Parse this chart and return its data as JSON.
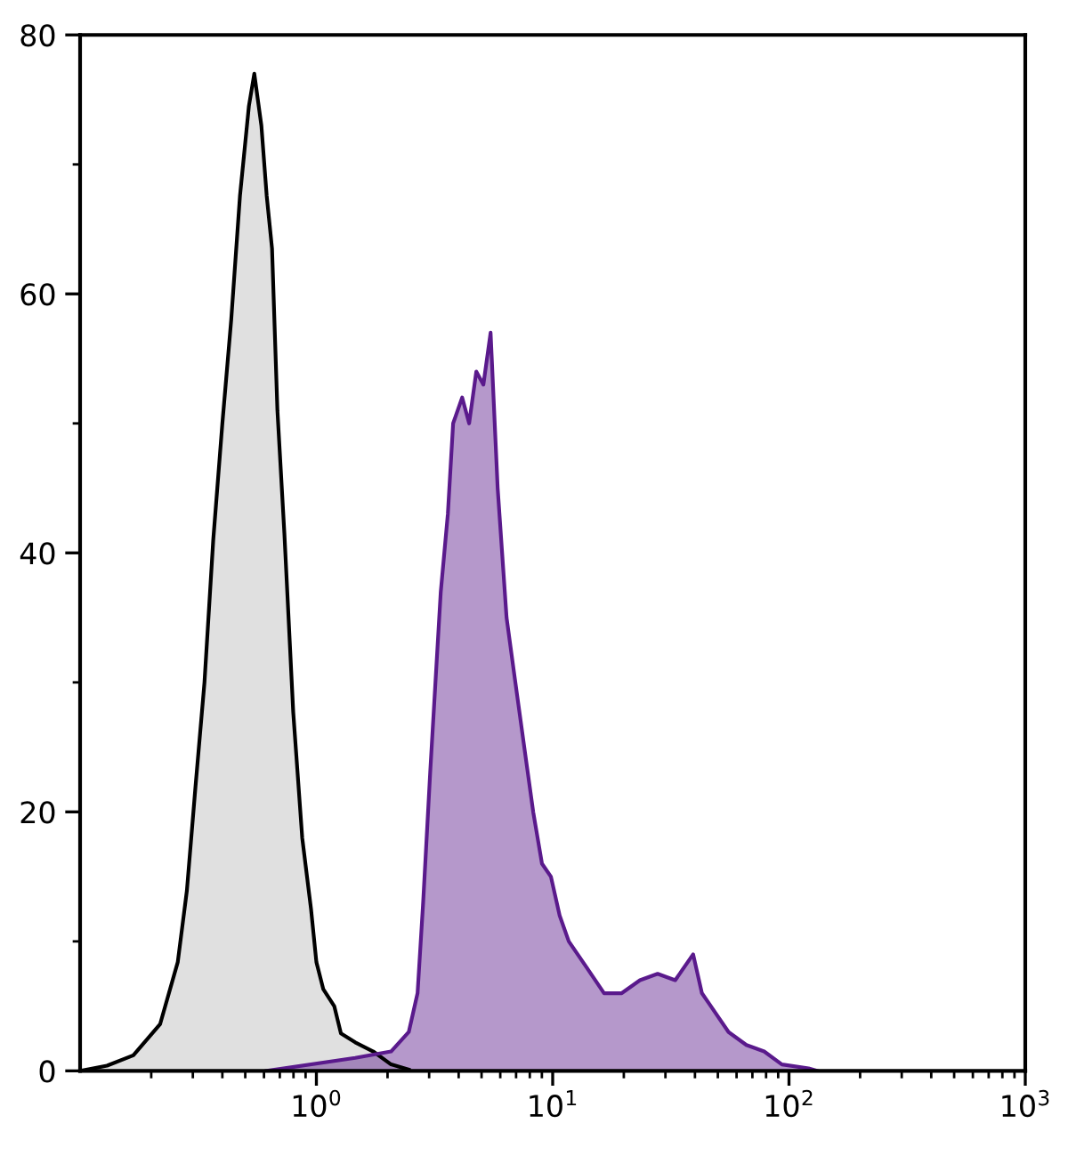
{
  "chart_data": {
    "type": "area",
    "log": "x",
    "xlim": [
      0.1,
      1000
    ],
    "xticks": [
      {
        "value": 1,
        "label": "10$^{0}$"
      },
      {
        "value": 10,
        "label": "10$^{1}$"
      },
      {
        "value": 100,
        "label": "10$^{2}$"
      },
      {
        "value": 1000,
        "label": "10$^{3}$"
      }
    ],
    "ylim": [
      0,
      80
    ],
    "yticks": [
      0,
      20,
      40,
      60,
      80
    ],
    "grid": false,
    "series": [
      {
        "color": "#000000",
        "x": [
          0.1,
          0.13,
          0.168,
          0.218,
          0.259,
          0.283,
          0.308,
          0.336,
          0.366,
          0.4,
          0.436,
          0.475,
          0.518,
          0.546,
          0.585,
          0.616,
          0.649,
          0.684,
          0.732,
          0.798,
          0.871,
          0.949,
          1.0,
          1.07,
          1.19,
          1.27,
          1.46,
          1.74,
          2.07,
          2.46
        ],
        "values": [
          0,
          0.4,
          1.2,
          3.6,
          8.4,
          13.9,
          22,
          30,
          41,
          50,
          58,
          67.6,
          74.5,
          77,
          73,
          67.6,
          63.5,
          51,
          41.5,
          27.7,
          18,
          12.5,
          8.4,
          6.3,
          5,
          2.9,
          2.2,
          1.5,
          0.5,
          0.1
        ]
      },
      {
        "color": "#5a1a8c",
        "x": [
          0.616,
          1.46,
          2.07,
          2.46,
          2.68,
          2.83,
          3.03,
          3.19,
          3.36,
          3.6,
          3.79,
          4.14,
          4.43,
          4.75,
          5.09,
          5.46,
          5.85,
          6.38,
          6.95,
          7.58,
          8.27,
          9.01,
          9.83,
          10.7,
          11.7,
          13.9,
          16.5,
          19.6,
          23.4,
          27.8,
          33.0,
          39.3,
          42.8,
          46.7,
          55.5,
          66.0,
          78.5,
          93.3,
          121,
          132
        ],
        "values": [
          0,
          1,
          1.5,
          3,
          6,
          13,
          23,
          30,
          37,
          43,
          50,
          52,
          50,
          54,
          53,
          57,
          45,
          35,
          30,
          25,
          20,
          16,
          15,
          12,
          10,
          8,
          6,
          6,
          7,
          7.5,
          7,
          9,
          6,
          5,
          3,
          2,
          1.5,
          0.5,
          0.2,
          0
        ]
      }
    ]
  }
}
